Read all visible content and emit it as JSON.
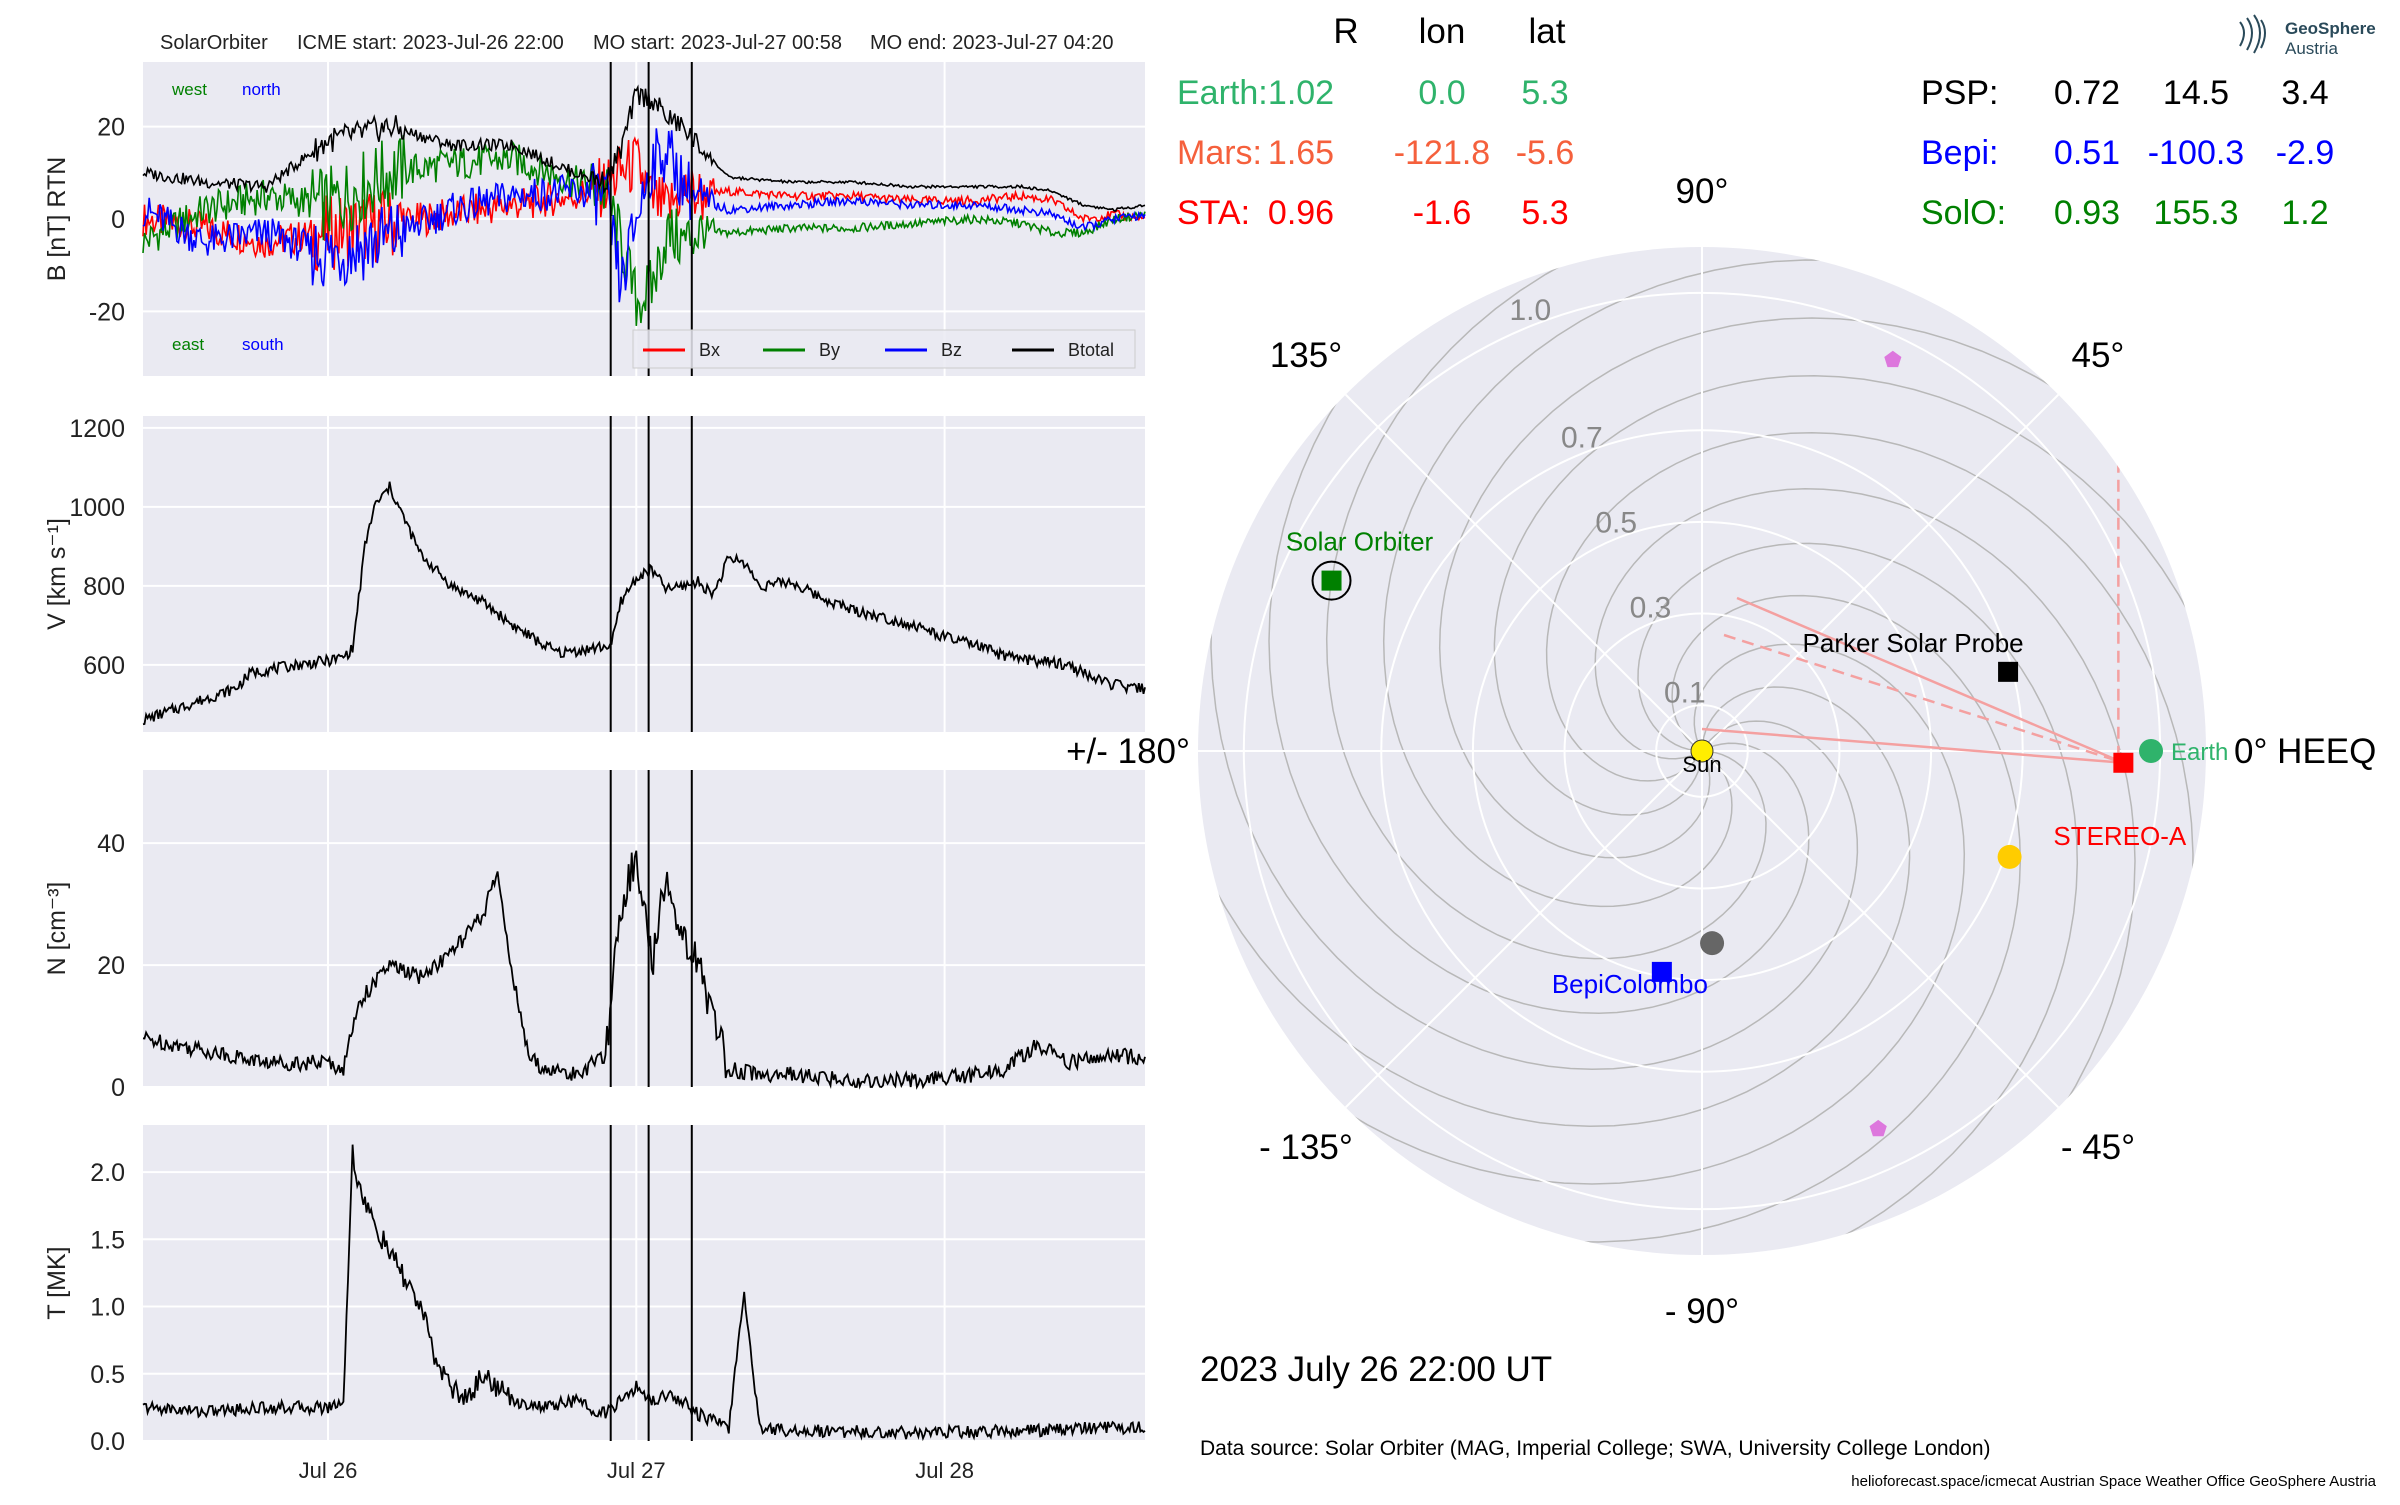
{
  "header": {
    "spacecraft": "SolarOrbiter",
    "icme_start": "ICME start: 2023-Jul-26 22:00",
    "mo_start": "MO start: 2023-Jul-27 00:58",
    "mo_end": "MO end: 2023-Jul-27 04:20"
  },
  "positions_table": {
    "columns": [
      "R",
      "lon",
      "lat"
    ],
    "rows": [
      {
        "name": "Earth:",
        "R": "1.02",
        "lon": "0.0",
        "lat": "5.3",
        "color": "#2fb36b"
      },
      {
        "name": "Mars:",
        "R": "1.65",
        "lon": "-121.8",
        "lat": "-5.6",
        "color": "#f5603c"
      },
      {
        "name": "STA:",
        "R": "0.96",
        "lon": "-1.6",
        "lat": "5.3",
        "color": "#ff0000"
      },
      {
        "name": "PSP:",
        "R": "0.72",
        "lon": "14.5",
        "lat": "3.4",
        "color": "#000000"
      },
      {
        "name": "Bepi:",
        "R": "0.51",
        "lon": "-100.3",
        "lat": "-2.9",
        "color": "#0000ff"
      },
      {
        "name": "SolO:",
        "R": "0.93",
        "lon": "155.3",
        "lat": "1.2",
        "color": "#008000"
      }
    ]
  },
  "logo": {
    "line1": "GeoSphere",
    "line2": "Austria"
  },
  "date_label": "2023 July 26  22:00 UT",
  "data_source": "Data source: Solar Orbiter (MAG, Imperial College; SWA, University College London)",
  "footer": "helioforecast.space/icmecat   Austrian Space Weather Office   GeoSphere Austria",
  "chart_data": [
    {
      "type": "line",
      "panel": "magnetic-field",
      "ylabel": "B [nT] RTN",
      "ylim": [
        -34,
        34
      ],
      "yticks": [
        -20,
        0,
        20
      ],
      "xlim": [
        -0.6,
        2.65
      ],
      "xticks": [
        {
          "v": 0,
          "label": ""
        },
        {
          "v": 1,
          "label": ""
        },
        {
          "v": 2,
          "label": ""
        }
      ],
      "corner_labels": [
        {
          "text": "west",
          "color": "#008000",
          "pos": "top-left"
        },
        {
          "text": "north",
          "color": "#0000ff",
          "pos": "top-left-2"
        },
        {
          "text": "east",
          "color": "#008000",
          "pos": "bottom-left"
        },
        {
          "text": "south",
          "color": "#0000ff",
          "pos": "bottom-left-2"
        }
      ],
      "legend": "bottom-right",
      "series": [
        {
          "name": "Bx",
          "color": "#ff0000",
          "x": [
            -0.6,
            -0.4,
            -0.2,
            0,
            0.2,
            0.4,
            0.6,
            0.8,
            0.9,
            0.95,
            1.0,
            1.05,
            1.1,
            1.15,
            1.2,
            1.3,
            1.5,
            1.7,
            1.9,
            2.1,
            2.25,
            2.35,
            2.45,
            2.55,
            2.65
          ],
          "y": [
            0,
            -2,
            -5,
            -3,
            -1,
            1,
            3,
            5,
            7,
            10,
            12,
            4,
            2,
            6,
            5,
            6,
            5,
            5,
            4,
            4,
            5,
            4,
            0,
            1,
            0
          ]
        },
        {
          "name": "By",
          "color": "#008000",
          "x": [
            -0.6,
            -0.4,
            -0.2,
            0,
            0.2,
            0.4,
            0.6,
            0.8,
            0.9,
            0.95,
            1.0,
            1.05,
            1.1,
            1.15,
            1.2,
            1.3,
            1.5,
            1.7,
            1.9,
            2.1,
            2.25,
            2.35,
            2.45,
            2.55,
            2.65
          ],
          "y": [
            -5,
            2,
            5,
            3,
            10,
            12,
            13,
            8,
            6,
            -5,
            -18,
            -15,
            -3,
            -5,
            -3,
            -3,
            -2,
            -2,
            -1,
            0,
            -1,
            -3,
            -3,
            0,
            1
          ]
        },
        {
          "name": "Bz",
          "color": "#0000ff",
          "x": [
            -0.6,
            -0.4,
            -0.2,
            0,
            0.2,
            0.4,
            0.6,
            0.8,
            0.9,
            0.95,
            1.0,
            1.05,
            1.1,
            1.15,
            1.2,
            1.3,
            1.5,
            1.7,
            1.9,
            2.1,
            2.25,
            2.35,
            2.45,
            2.55,
            2.65
          ],
          "y": [
            2,
            -5,
            -3,
            -8,
            -4,
            2,
            5,
            6,
            5,
            -15,
            0,
            12,
            15,
            8,
            4,
            2,
            3,
            4,
            3,
            3,
            2,
            1,
            -2,
            0,
            1
          ]
        },
        {
          "name": "Btotal",
          "color": "#000000",
          "x": [
            -0.6,
            -0.4,
            -0.2,
            0,
            0.2,
            0.4,
            0.6,
            0.8,
            0.9,
            0.95,
            1.0,
            1.05,
            1.1,
            1.15,
            1.2,
            1.3,
            1.5,
            1.7,
            1.9,
            2.1,
            2.25,
            2.35,
            2.45,
            2.55,
            2.65
          ],
          "y": [
            10,
            8,
            7,
            17,
            20,
            16,
            16,
            10,
            8,
            15,
            27,
            26,
            22,
            20,
            16,
            9,
            8,
            8,
            7,
            7,
            7,
            6,
            3,
            2,
            3
          ]
        }
      ]
    },
    {
      "type": "line",
      "panel": "speed",
      "ylabel": "V [km s⁻¹]",
      "ylim": [
        430,
        1230
      ],
      "yticks": [
        600,
        800,
        1000,
        1200
      ],
      "xlim": [
        -0.6,
        2.65
      ],
      "series": [
        {
          "name": "",
          "color": "#000000",
          "x": [
            -0.6,
            -0.45,
            -0.3,
            -0.25,
            -0.1,
            0.0,
            0.05,
            0.08,
            0.12,
            0.15,
            0.2,
            0.3,
            0.4,
            0.5,
            0.6,
            0.7,
            0.75,
            0.85,
            0.92,
            0.95,
            1.0,
            1.05,
            1.1,
            1.15,
            1.2,
            1.25,
            1.3,
            1.35,
            1.4,
            1.5,
            1.6,
            1.7,
            1.8,
            1.9,
            2.0,
            2.1,
            2.2,
            2.3,
            2.4,
            2.5,
            2.6,
            2.65
          ],
          "y": [
            460,
            500,
            540,
            580,
            600,
            610,
            620,
            640,
            900,
            1000,
            1050,
            880,
            800,
            760,
            700,
            650,
            630,
            640,
            650,
            760,
            820,
            840,
            790,
            800,
            810,
            780,
            870,
            860,
            800,
            810,
            770,
            740,
            720,
            700,
            670,
            650,
            620,
            610,
            600,
            560,
            540,
            540
          ]
        }
      ]
    },
    {
      "type": "line",
      "panel": "density",
      "ylabel": "N [cm⁻³]",
      "ylim": [
        0,
        52
      ],
      "yticks": [
        0,
        20,
        40
      ],
      "xlim": [
        -0.6,
        2.65
      ],
      "series": [
        {
          "name": "",
          "color": "#000000",
          "x": [
            -0.6,
            -0.4,
            -0.2,
            0,
            0.05,
            0.1,
            0.2,
            0.3,
            0.4,
            0.5,
            0.55,
            0.6,
            0.65,
            0.7,
            0.8,
            0.9,
            0.95,
            1.0,
            1.05,
            1.1,
            1.15,
            1.2,
            1.3,
            1.4,
            1.5,
            1.7,
            1.9,
            2.1,
            2.2,
            2.3,
            2.4,
            2.5,
            2.65
          ],
          "y": [
            8,
            6,
            4,
            4,
            3,
            14,
            20,
            18,
            22,
            28,
            35,
            18,
            5,
            3,
            2,
            5,
            30,
            38,
            20,
            35,
            25,
            20,
            3,
            2,
            2,
            1,
            1,
            2,
            3,
            7,
            4,
            5,
            5
          ]
        }
      ]
    },
    {
      "type": "line",
      "panel": "temperature",
      "ylabel": "T [MK]",
      "ylim": [
        0,
        2.35
      ],
      "yticks": [
        0.0,
        0.5,
        1.0,
        1.5,
        2.0
      ],
      "xlim": [
        -0.6,
        2.65
      ],
      "xticks": [
        {
          "v": 0,
          "label": "Jul 26"
        },
        {
          "v": 1,
          "label": "Jul 27"
        },
        {
          "v": 2,
          "label": "Jul 28"
        }
      ],
      "series": [
        {
          "name": "",
          "color": "#000000",
          "x": [
            -0.6,
            -0.4,
            -0.2,
            0,
            0.05,
            0.08,
            0.1,
            0.15,
            0.2,
            0.3,
            0.35,
            0.4,
            0.45,
            0.5,
            0.6,
            0.7,
            0.8,
            0.9,
            0.95,
            1.0,
            1.05,
            1.1,
            1.15,
            1.2,
            1.3,
            1.35,
            1.4,
            1.5,
            1.7,
            1.9,
            2.1,
            2.3,
            2.5,
            2.65
          ],
          "y": [
            0.25,
            0.22,
            0.25,
            0.25,
            0.3,
            2.15,
            1.9,
            1.6,
            1.4,
            1.0,
            0.6,
            0.4,
            0.3,
            0.5,
            0.3,
            0.25,
            0.3,
            0.2,
            0.3,
            0.4,
            0.3,
            0.35,
            0.3,
            0.2,
            0.1,
            1.1,
            0.1,
            0.08,
            0.07,
            0.06,
            0.07,
            0.08,
            0.1,
            0.1
          ]
        }
      ]
    },
    {
      "type": "polar",
      "panel": "orbit-plot",
      "rlim": [
        0,
        1.1
      ],
      "radial_ticks": [
        "0.1",
        "0.3",
        "0.5",
        "0.7",
        "1.0"
      ],
      "radial_tick_values": [
        0.1,
        0.3,
        0.5,
        0.7,
        1.0
      ],
      "angle_labels": [
        {
          "deg": 0,
          "text": "0° HEEQ"
        },
        {
          "deg": 45,
          "text": "45°"
        },
        {
          "deg": 90,
          "text": "90°"
        },
        {
          "deg": 135,
          "text": "135°"
        },
        {
          "deg": 180,
          "text": "+/- 180°"
        },
        {
          "deg": -135,
          "text": "- 135°"
        },
        {
          "deg": -90,
          "text": "- 90°"
        },
        {
          "deg": -45,
          "text": "- 45°"
        }
      ],
      "bodies": [
        {
          "label": "Sun",
          "r": 0.0,
          "lon": 0,
          "marker": "circle",
          "color": "#ffee00",
          "label_color": "#000000"
        },
        {
          "label": "Earth",
          "r": 0.98,
          "lon": 0.0,
          "marker": "circle",
          "color": "#2fb36b",
          "label_color": "#2fb36b"
        },
        {
          "label": "STEREO-A",
          "r": 0.92,
          "lon": -1.6,
          "marker": "square",
          "color": "#ff0000",
          "label_color": "#ff0000"
        },
        {
          "label": "Parker Solar Probe",
          "r": 0.69,
          "lon": 14.5,
          "marker": "square",
          "color": "#000000",
          "label_color": "#000000"
        },
        {
          "label": "BepiColombo",
          "r": 0.49,
          "lon": -100.3,
          "marker": "square",
          "color": "#0000ff",
          "label_color": "#0000ff"
        },
        {
          "label": "Solar Orbiter",
          "r": 0.89,
          "lon": 155.3,
          "marker": "square",
          "color": "#008000",
          "label_color": "#008000"
        },
        {
          "label": "",
          "r": 0.71,
          "lon": -19.0,
          "marker": "circle",
          "color": "#ffcc00"
        },
        {
          "label": "",
          "r": 0.42,
          "lon": -87.0,
          "marker": "circle",
          "color": "#666666"
        },
        {
          "label": "",
          "r": 0.95,
          "lon": 64.0,
          "marker": "pentagon",
          "color": "#dd77dd"
        },
        {
          "label": "",
          "r": 0.91,
          "lon": -65.0,
          "marker": "pentagon",
          "color": "#dd77dd"
        }
      ]
    }
  ]
}
